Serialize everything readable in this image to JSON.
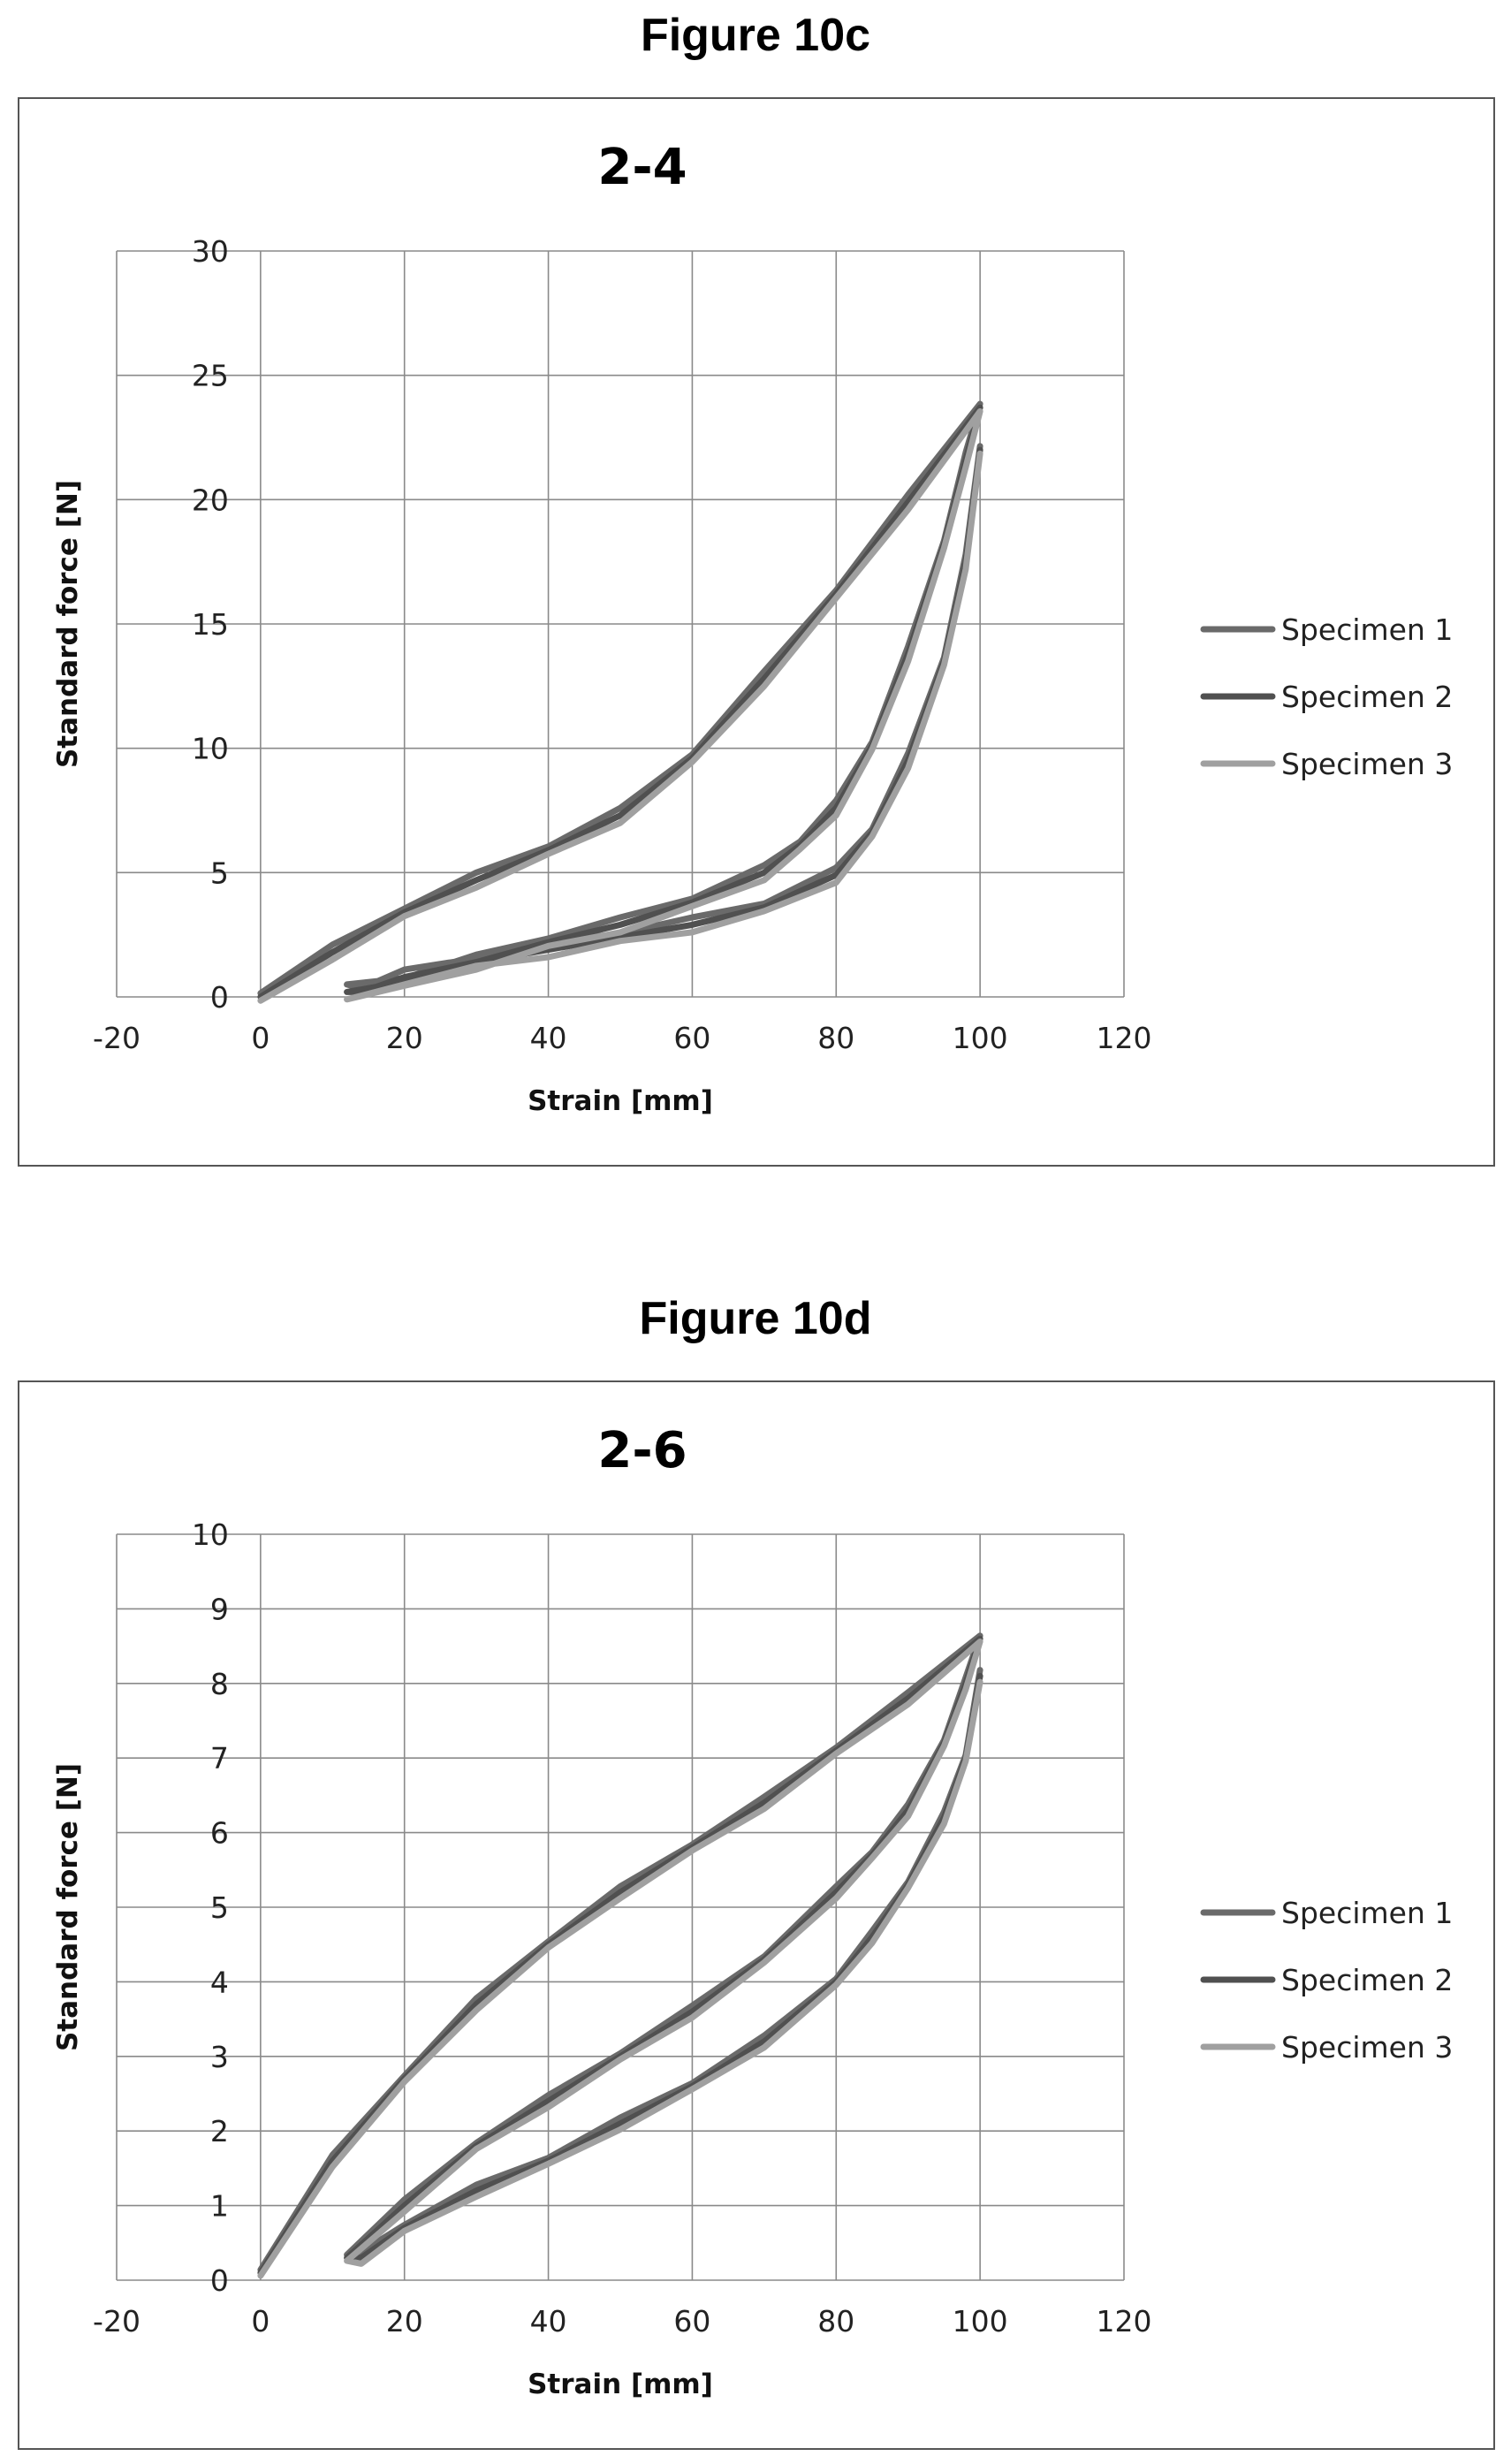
{
  "figures": [
    {
      "caption": "Figure 10c"
    },
    {
      "caption": "Figure 10d"
    }
  ],
  "chart_data": [
    {
      "type": "line",
      "title": "2-4",
      "xlabel": "Strain [mm]",
      "ylabel": "Standard force [N]",
      "xlim": [
        -20,
        120
      ],
      "ylim": [
        0,
        30
      ],
      "xticks": [
        "-20",
        "0",
        "20",
        "40",
        "60",
        "80",
        "100",
        "120"
      ],
      "yticks": [
        "0",
        "5",
        "10",
        "15",
        "20",
        "25",
        "30"
      ],
      "grid": true,
      "legend_position": "right",
      "series": [
        {
          "name": "Specimen 1",
          "color": "#6a6a6a",
          "offset": 0.3,
          "x": [
            0,
            10,
            20,
            30,
            40,
            50,
            60,
            70,
            80,
            90,
            100,
            98,
            95,
            90,
            85,
            80,
            75,
            70,
            60,
            50,
            40,
            30,
            20,
            12,
            14,
            20,
            30,
            40,
            50,
            60,
            70,
            80,
            85,
            90,
            95,
            98,
            100
          ],
          "y": [
            0,
            1.8,
            3.4,
            4.7,
            5.9,
            7.3,
            9.6,
            12.8,
            16.2,
            19.9,
            23.7,
            21.6,
            18.2,
            13.8,
            10.1,
            7.6,
            6.1,
            5.0,
            3.8,
            2.9,
            2.2,
            1.4,
            0.6,
            0.2,
            0.2,
            0.8,
            1.4,
            1.9,
            2.4,
            2.9,
            3.6,
            4.9,
            6.6,
            9.5,
            13.5,
            17.5,
            22.0
          ]
        },
        {
          "name": "Specimen 2",
          "color": "#505050",
          "offset": 0,
          "x": [
            0,
            10,
            20,
            30,
            40,
            50,
            60,
            70,
            80,
            90,
            100,
            98,
            95,
            90,
            85,
            80,
            75,
            70,
            60,
            50,
            40,
            30,
            20,
            12,
            14,
            20,
            30,
            40,
            50,
            60,
            70,
            80,
            85,
            90,
            95,
            98,
            100
          ],
          "y": [
            0,
            1.8,
            3.4,
            4.7,
            5.9,
            7.3,
            9.6,
            12.8,
            16.2,
            19.9,
            23.7,
            21.6,
            18.2,
            13.8,
            10.1,
            7.6,
            6.1,
            5.0,
            3.8,
            2.9,
            2.2,
            1.4,
            0.6,
            0.2,
            0.2,
            0.8,
            1.4,
            1.9,
            2.4,
            2.9,
            3.6,
            4.9,
            6.6,
            9.5,
            13.5,
            17.5,
            22.0
          ]
        },
        {
          "name": "Specimen 3",
          "color": "#a0a0a0",
          "offset": -0.3,
          "x": [
            0,
            10,
            20,
            30,
            40,
            50,
            60,
            70,
            80,
            90,
            100,
            98,
            95,
            90,
            85,
            80,
            75,
            70,
            60,
            50,
            40,
            30,
            20,
            12,
            14,
            20,
            30,
            40,
            50,
            60,
            70,
            80,
            85,
            90,
            95,
            98,
            100
          ],
          "y": [
            0,
            1.8,
            3.4,
            4.7,
            5.9,
            7.3,
            9.6,
            12.8,
            16.2,
            19.9,
            23.7,
            21.6,
            18.2,
            13.8,
            10.1,
            7.6,
            6.1,
            5.0,
            3.8,
            2.9,
            2.2,
            1.4,
            0.6,
            0.2,
            0.2,
            0.8,
            1.4,
            1.9,
            2.4,
            2.9,
            3.6,
            4.9,
            6.6,
            9.5,
            13.5,
            17.5,
            22.0
          ]
        }
      ]
    },
    {
      "type": "line",
      "title": "2-6",
      "xlabel": "Strain [mm]",
      "ylabel": "Standard force [N]",
      "xlim": [
        -20,
        120
      ],
      "ylim": [
        0,
        10
      ],
      "xticks": [
        "-20",
        "0",
        "20",
        "40",
        "60",
        "80",
        "100",
        "120"
      ],
      "yticks": [
        "0",
        "1",
        "2",
        "3",
        "4",
        "5",
        "6",
        "7",
        "8",
        "9",
        "10"
      ],
      "grid": true,
      "legend_position": "right",
      "series": [
        {
          "name": "Specimen 1",
          "color": "#6a6a6a",
          "offset": 0.08,
          "x": [
            0,
            10,
            20,
            30,
            40,
            50,
            60,
            70,
            80,
            90,
            100,
            98,
            95,
            90,
            85,
            80,
            70,
            60,
            50,
            40,
            30,
            20,
            12,
            14,
            20,
            30,
            40,
            50,
            60,
            70,
            80,
            85,
            90,
            95,
            98,
            100
          ],
          "y": [
            0.1,
            1.6,
            2.7,
            3.7,
            4.5,
            5.2,
            5.8,
            6.4,
            7.1,
            7.8,
            8.6,
            8.0,
            7.2,
            6.3,
            5.7,
            5.2,
            4.3,
            3.6,
            3.0,
            2.4,
            1.8,
            1.0,
            0.3,
            0.3,
            0.7,
            1.2,
            1.6,
            2.1,
            2.6,
            3.2,
            4.0,
            4.6,
            5.3,
            6.2,
            7.0,
            8.1
          ]
        },
        {
          "name": "Specimen 2",
          "color": "#505050",
          "offset": 0,
          "x": [
            0,
            10,
            20,
            30,
            40,
            50,
            60,
            70,
            80,
            90,
            100,
            98,
            95,
            90,
            85,
            80,
            70,
            60,
            50,
            40,
            30,
            20,
            12,
            14,
            20,
            30,
            40,
            50,
            60,
            70,
            80,
            85,
            90,
            95,
            98,
            100
          ],
          "y": [
            0.1,
            1.6,
            2.7,
            3.7,
            4.5,
            5.2,
            5.8,
            6.4,
            7.1,
            7.8,
            8.6,
            8.0,
            7.2,
            6.3,
            5.7,
            5.2,
            4.3,
            3.6,
            3.0,
            2.4,
            1.8,
            1.0,
            0.3,
            0.3,
            0.7,
            1.2,
            1.6,
            2.1,
            2.6,
            3.2,
            4.0,
            4.6,
            5.3,
            6.2,
            7.0,
            8.1
          ]
        },
        {
          "name": "Specimen 3",
          "color": "#a0a0a0",
          "offset": -0.08,
          "x": [
            0,
            10,
            20,
            30,
            40,
            50,
            60,
            70,
            80,
            90,
            100,
            98,
            95,
            90,
            85,
            80,
            70,
            60,
            50,
            40,
            30,
            20,
            12,
            14,
            20,
            30,
            40,
            50,
            60,
            70,
            80,
            85,
            90,
            95,
            98,
            100
          ],
          "y": [
            0.1,
            1.6,
            2.7,
            3.7,
            4.5,
            5.2,
            5.8,
            6.4,
            7.1,
            7.8,
            8.6,
            8.0,
            7.2,
            6.3,
            5.7,
            5.2,
            4.3,
            3.6,
            3.0,
            2.4,
            1.8,
            1.0,
            0.3,
            0.3,
            0.7,
            1.2,
            1.6,
            2.1,
            2.6,
            3.2,
            4.0,
            4.6,
            5.3,
            6.2,
            7.0,
            8.1
          ]
        }
      ]
    }
  ]
}
